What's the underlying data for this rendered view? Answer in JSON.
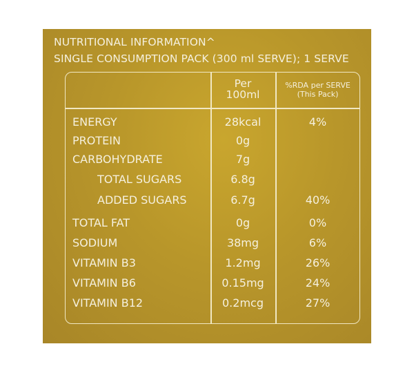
{
  "header": {
    "line1": "NUTRITIONAL INFORMATION^",
    "line2": "SINGLE CONSUMPTION PACK (300 ml SERVE); 1 SERVE"
  },
  "columns": {
    "per_line1": "Per",
    "per_line2": "100ml",
    "rda_line1": "%RDA per SERVE",
    "rda_line2": "(This Pack)"
  },
  "rows": [
    {
      "name": "ENERGY",
      "value": "28kcal",
      "rda": "4%"
    },
    {
      "name": "PROTEIN",
      "value": "0g",
      "rda": ""
    },
    {
      "name": "CARBOHYDRATE",
      "value": "7g",
      "rda": ""
    },
    {
      "name": "TOTAL SUGARS",
      "value": "6.8g",
      "rda": ""
    },
    {
      "name": "ADDED SUGARS",
      "value": "6.7g",
      "rda": "40%"
    },
    {
      "name": "TOTAL FAT",
      "value": "0g",
      "rda": "0%"
    },
    {
      "name": "SODIUM",
      "value": "38mg",
      "rda": "6%"
    },
    {
      "name": "VITAMIN B3",
      "value": "1.2mg",
      "rda": "26%"
    },
    {
      "name": "VITAMIN B6",
      "value": "0.15mg",
      "rda": "24%"
    },
    {
      "name": "VITAMIN B12",
      "value": "0.2mcg",
      "rda": "27%"
    }
  ],
  "colors": {
    "panel": "#b8962a",
    "text": "#f5f0de"
  }
}
